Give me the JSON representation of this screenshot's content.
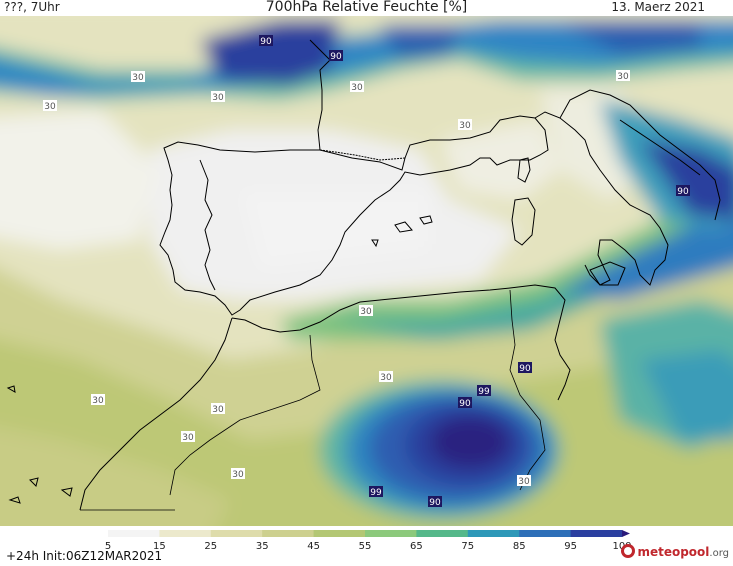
{
  "header": {
    "left": "???, 7Uhr",
    "title": "700hPa Relative Feuchte [%]",
    "date": "13. Maerz 2021"
  },
  "footer": {
    "init": "+24h  Init:06Z12MAR2021",
    "brand": "meteopool",
    "brand_tld": ".org"
  },
  "legend": {
    "ticks": [
      "5",
      "15",
      "25",
      "35",
      "45",
      "55",
      "65",
      "75",
      "85",
      "95",
      "100"
    ],
    "colors": [
      "#f4f4f4",
      "#ece9cc",
      "#dedcab",
      "#cdd08f",
      "#b3c774",
      "#8cc97c",
      "#55b88a",
      "#2e98b8",
      "#2d6fb8",
      "#2b3fa0",
      "#2a1a7a"
    ]
  },
  "contour_labels": [
    "90",
    "90",
    "30",
    "30",
    "30",
    "30",
    "30",
    "30",
    "90",
    "30",
    "30",
    "30",
    "30",
    "30",
    "30",
    "90",
    "99",
    "90",
    "99",
    "90",
    "30"
  ],
  "colors": {
    "coastline": "#000000",
    "driest": "#f1f1f1",
    "wettest": "#2a1a7a"
  }
}
